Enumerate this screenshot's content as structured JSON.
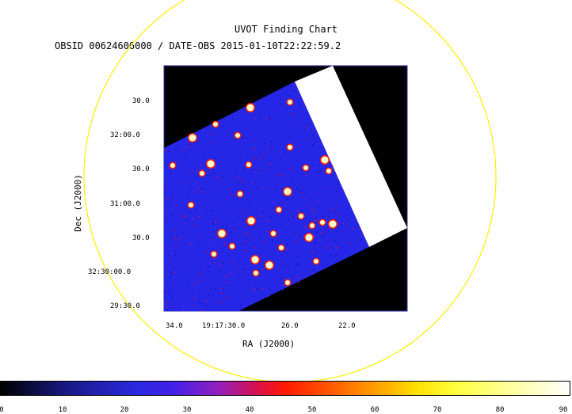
{
  "title": "UVOT Finding Chart",
  "subtitle": "OBSID 00624606000 / DATE-OBS 2015-01-10T22:22:59.2",
  "y_axis_title": "Dec (J2000)",
  "x_axis_title": "RA (J2000)",
  "dec_ticks": [
    "30.0",
    "32:00.0",
    "30.0",
    "31:00.0",
    "30.0",
    "32:30:00.0",
    "29:30.0"
  ],
  "ra_ticks": [
    "34.0",
    "19:17:30.0",
    "26.0",
    "22.0"
  ],
  "colorbar_ticks": [
    "0",
    "10",
    "20",
    "30",
    "40",
    "50",
    "60",
    "70",
    "80",
    "90"
  ],
  "colors": {
    "circle": "#ffee00",
    "field_blue": "#2626e6",
    "frame": "#3333aa"
  }
}
